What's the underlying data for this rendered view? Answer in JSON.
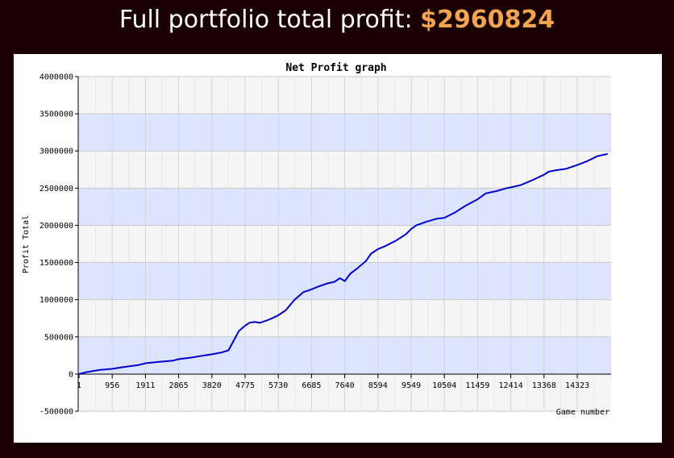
{
  "header": {
    "label": "Full portfolio total profit:",
    "amount": "$2960824"
  },
  "chart_data": {
    "type": "line",
    "title": "Net Profit graph",
    "xlabel": "Game number",
    "ylabel": "Profit Total",
    "xlim": [
      1,
      15200
    ],
    "ylim": [
      -500000,
      4000000
    ],
    "x_ticks": [
      "1",
      "956",
      "1911",
      "2865",
      "3820",
      "4775",
      "5730",
      "6685",
      "7640",
      "8594",
      "9549",
      "10504",
      "11459",
      "12414",
      "13368",
      "14323"
    ],
    "y_ticks": [
      "-500000",
      "0",
      "500000",
      "1000000",
      "1500000",
      "2000000",
      "2500000",
      "3000000",
      "3500000",
      "4000000"
    ],
    "grid": true,
    "colors": {
      "line": "#0000cc",
      "band": "#dde4ff",
      "plot_bg": "#f5f5f5"
    },
    "series": [
      {
        "x": [
          1,
          200,
          600,
          956,
          1300,
          1700,
          1911,
          2300,
          2700,
          2865,
          3200,
          3600,
          3820,
          4100,
          4300,
          4450,
          4600,
          4775,
          4900,
          5050,
          5200,
          5400,
          5600,
          5730,
          5950,
          6200,
          6450,
          6685,
          6900,
          7150,
          7350,
          7500,
          7640,
          7800,
          8000,
          8250,
          8400,
          8594,
          8800,
          9100,
          9400,
          9549,
          9700,
          10000,
          10300,
          10504,
          10800,
          11100,
          11459,
          11700,
          12000,
          12300,
          12414,
          12700,
          13000,
          13368,
          13500,
          13700,
          14000,
          14323,
          14600,
          14900,
          15200
        ],
        "y": [
          0,
          25000,
          55000,
          70000,
          95000,
          120000,
          145000,
          165000,
          180000,
          200000,
          220000,
          250000,
          265000,
          290000,
          320000,
          450000,
          580000,
          650000,
          690000,
          700000,
          690000,
          720000,
          760000,
          790000,
          860000,
          1000000,
          1100000,
          1140000,
          1180000,
          1220000,
          1240000,
          1290000,
          1250000,
          1350000,
          1420000,
          1520000,
          1620000,
          1680000,
          1720000,
          1790000,
          1880000,
          1950000,
          2000000,
          2050000,
          2090000,
          2100000,
          2170000,
          2260000,
          2350000,
          2430000,
          2460000,
          2500000,
          2510000,
          2540000,
          2600000,
          2680000,
          2720000,
          2740000,
          2760000,
          2810000,
          2860000,
          2930000,
          2960000
        ]
      }
    ]
  }
}
